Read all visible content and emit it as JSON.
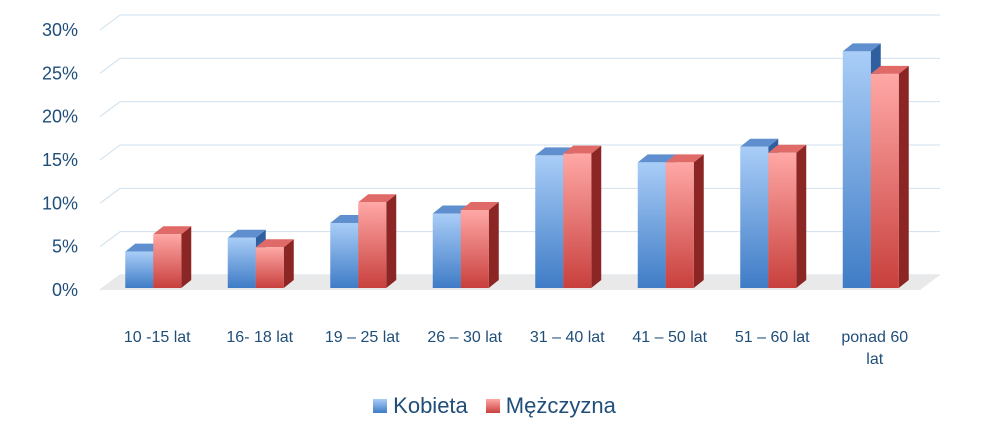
{
  "chart_data": {
    "type": "bar",
    "categories": [
      [
        "10 -15 lat"
      ],
      [
        "16- 18 lat"
      ],
      [
        "19 – 25 lat"
      ],
      [
        "26 – 30 lat"
      ],
      [
        "31 – 40 lat"
      ],
      [
        "41 – 50 lat"
      ],
      [
        "51 – 60 lat"
      ],
      [
        "ponad 60",
        "lat"
      ]
    ],
    "series": [
      {
        "name": "Kobieta",
        "values": [
          4.2,
          5.8,
          7.5,
          8.6,
          15.3,
          14.5,
          16.3,
          27.3
        ],
        "color": "#4a86c9"
      },
      {
        "name": "Mężczyzna",
        "values": [
          6.2,
          4.7,
          9.9,
          9.0,
          15.5,
          14.5,
          15.6,
          24.7
        ],
        "color": "#d9534f"
      }
    ],
    "ylim": [
      0,
      30
    ],
    "yticks": [
      "0%",
      "5%",
      "10%",
      "15%",
      "20%",
      "25%",
      "30%"
    ],
    "grid": true,
    "legend_position": "bottom"
  }
}
